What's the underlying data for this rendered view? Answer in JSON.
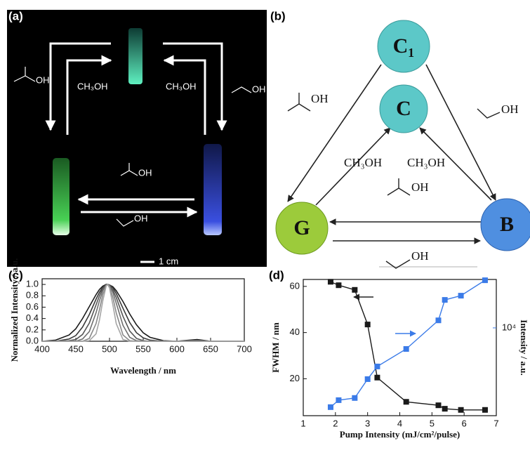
{
  "photo": {
    "label": "(a)",
    "texts": [
      "OH",
      "CH₃OH",
      "CH₃OH",
      "OH",
      "OH",
      "OH",
      "1 cm"
    ]
  },
  "diagram": {
    "label": "(b)",
    "nodes": [
      {
        "label": "C₁"
      },
      {
        "label": "C"
      },
      {
        "label": "G"
      },
      {
        "label": "B"
      }
    ],
    "edge_labels": [
      "OH",
      "OH",
      "CH₃OH",
      "CH₃OH",
      "OH",
      "OH"
    ]
  },
  "chart_data": [
    {
      "type": "line",
      "label": "(c)",
      "xlabel": "Wavelength / nm",
      "ylabel": "Normalized Intensity / a.u.",
      "x": [
        400,
        420,
        440,
        450,
        460,
        470,
        480,
        485,
        490,
        495,
        497,
        500,
        505,
        510,
        520,
        530,
        540,
        550,
        560,
        580,
        600,
        630,
        650,
        700
      ],
      "series": [
        {
          "color": "#1a1a1a",
          "values": [
            0,
            0.02,
            0.11,
            0.22,
            0.4,
            0.61,
            0.82,
            0.91,
            0.97,
            1.0,
            1,
            0.99,
            0.96,
            0.89,
            0.7,
            0.48,
            0.29,
            0.15,
            0.07,
            0.01,
            0,
            0.03,
            0,
            0
          ]
        },
        {
          "color": "#3a3a3a",
          "values": [
            0,
            0,
            0.04,
            0.1,
            0.25,
            0.47,
            0.74,
            0.86,
            0.95,
            1.0,
            1,
            0.99,
            0.94,
            0.84,
            0.58,
            0.33,
            0.15,
            0.06,
            0.02,
            0,
            0,
            0.02,
            0,
            0
          ]
        },
        {
          "color": "#555555",
          "values": [
            0,
            0,
            0.01,
            0.03,
            0.12,
            0.32,
            0.64,
            0.8,
            0.93,
            0.99,
            1,
            0.99,
            0.9,
            0.77,
            0.44,
            0.18,
            0.05,
            0.01,
            0,
            0,
            0,
            0.01,
            0,
            0
          ]
        },
        {
          "color": "#6e6e6e",
          "values": [
            0,
            0,
            0,
            0,
            0.04,
            0.17,
            0.5,
            0.71,
            0.89,
            0.99,
            1,
            0.98,
            0.86,
            0.67,
            0.28,
            0.07,
            0.01,
            0,
            0,
            0,
            0,
            0,
            0,
            0
          ]
        },
        {
          "color": "#888888",
          "values": [
            0,
            0,
            0,
            0,
            0,
            0.05,
            0.31,
            0.55,
            0.82,
            0.98,
            1,
            0.96,
            0.77,
            0.5,
            0.11,
            0.01,
            0,
            0,
            0,
            0,
            0,
            0,
            0,
            0
          ]
        },
        {
          "color": "#a5a5a5",
          "values": [
            0,
            0,
            0,
            0,
            0,
            0.01,
            0.13,
            0.37,
            0.71,
            0.97,
            1,
            0.94,
            0.64,
            0.31,
            0.03,
            0,
            0,
            0,
            0,
            0,
            0,
            0,
            0,
            0
          ]
        }
      ],
      "xlim": [
        400,
        700
      ],
      "xticks": [
        400,
        450,
        500,
        550,
        600,
        650,
        700
      ],
      "ylim": [
        0,
        1.1
      ],
      "yticks": [
        {
          "value": 0,
          "label": "0.0"
        },
        {
          "value": 0.2,
          "label": "0.2"
        },
        {
          "value": 0.4,
          "label": "0.4"
        },
        {
          "value": 0.6,
          "label": "0.6"
        },
        {
          "value": 0.8,
          "label": "0.8"
        },
        {
          "value": 1,
          "label": "1.0"
        }
      ]
    },
    {
      "type": "line",
      "label": "(d)",
      "xlabel": "Pump Intensity (mJ/cm²/pulse)",
      "ylabel": "FWHM / nm",
      "y2label": "Intensity / a.u.",
      "x": [
        1.85,
        2.1,
        2.6,
        3.0,
        3.3,
        4.2,
        5.2,
        5.4,
        5.9,
        6.65
      ],
      "series": [
        {
          "color": "#1a1a1a",
          "values": [
            62,
            60.5,
            58.5,
            43.5,
            20.5,
            10,
            8.5,
            7,
            6.5,
            6.5
          ]
        },
        {
          "color": "#3b7be8",
          "axis": "y2",
          "values": [
            1750,
            2040,
            2140,
            3240,
            4280,
            6290,
            11800,
            18500,
            20300,
            28500
          ]
        }
      ],
      "xlim": [
        1,
        7
      ],
      "xticks": [
        1,
        2,
        3,
        4,
        5,
        6,
        7
      ],
      "ylim": [
        4,
        63
      ],
      "yticks": [
        20,
        40,
        60
      ],
      "y2lim": [
        1450,
        29000
      ],
      "y2scale": "log",
      "y2ticks": [
        {
          "value": 10000,
          "label": "10⁴"
        }
      ]
    }
  ]
}
